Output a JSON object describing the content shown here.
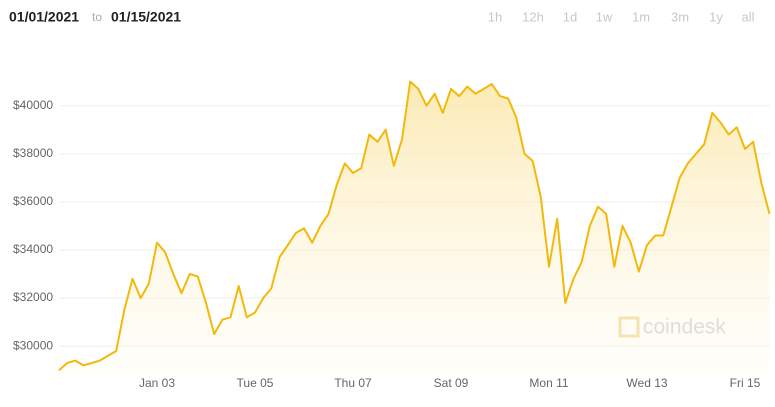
{
  "header": {
    "from": "01/01/2021",
    "separator": "to",
    "to": "01/15/2021",
    "ranges": [
      "1h",
      "12h",
      "1d",
      "1w",
      "1m",
      "3m",
      "1y",
      "all"
    ]
  },
  "watermark": "coindesk",
  "chart_data": {
    "type": "line",
    "color": "#f2b90c",
    "area": true,
    "grid": true,
    "categories": [
      null,
      null,
      null,
      null,
      null,
      null,
      null,
      null,
      null,
      null,
      null,
      null,
      "Jan 03",
      null,
      null,
      null,
      null,
      null,
      null,
      null,
      null,
      null,
      null,
      null,
      "Tue 05",
      null,
      null,
      null,
      null,
      null,
      null,
      null,
      null,
      null,
      null,
      null,
      "Thu 07",
      null,
      null,
      null,
      null,
      null,
      null,
      null,
      null,
      null,
      null,
      null,
      "Sat 09",
      null,
      null,
      null,
      null,
      null,
      null,
      null,
      null,
      null,
      null,
      null,
      "Mon 11",
      null,
      null,
      null,
      null,
      null,
      null,
      null,
      null,
      null,
      null,
      null,
      "Wed 13",
      null,
      null,
      null,
      null,
      null,
      null,
      null,
      null,
      null,
      null,
      null,
      "Fri 15",
      null,
      null,
      null
    ],
    "values": [
      29000,
      29300,
      29400,
      29200,
      29300,
      29400,
      29600,
      29800,
      31500,
      32800,
      32000,
      32600,
      34300,
      33900,
      33000,
      32200,
      33000,
      32900,
      31800,
      30500,
      31100,
      31200,
      32500,
      31200,
      31400,
      32000,
      32400,
      33700,
      34200,
      34700,
      34900,
      34300,
      35000,
      35500,
      36700,
      37600,
      37200,
      37400,
      38800,
      38500,
      39000,
      37500,
      38600,
      41000,
      40700,
      40000,
      40500,
      39700,
      40700,
      40400,
      40800,
      40500,
      40700,
      40900,
      40400,
      40300,
      39500,
      38000,
      37700,
      36200,
      33300,
      35300,
      31800,
      32800,
      33500,
      35000,
      35800,
      35500,
      33300,
      35000,
      34300,
      33100,
      34200,
      34600,
      34600,
      35800,
      37000,
      37600,
      38000,
      38400,
      39700,
      39300,
      38800,
      39100,
      38200,
      38500,
      36800,
      35500
    ],
    "ylim": [
      28800,
      41900
    ],
    "yticks": [
      {
        "value": 30000,
        "label": "$30000"
      },
      {
        "value": 32000,
        "label": "$32000"
      },
      {
        "value": 34000,
        "label": "$34000"
      },
      {
        "value": 36000,
        "label": "$36000"
      },
      {
        "value": 38000,
        "label": "$38000"
      },
      {
        "value": 40000,
        "label": "$40000"
      }
    ]
  }
}
